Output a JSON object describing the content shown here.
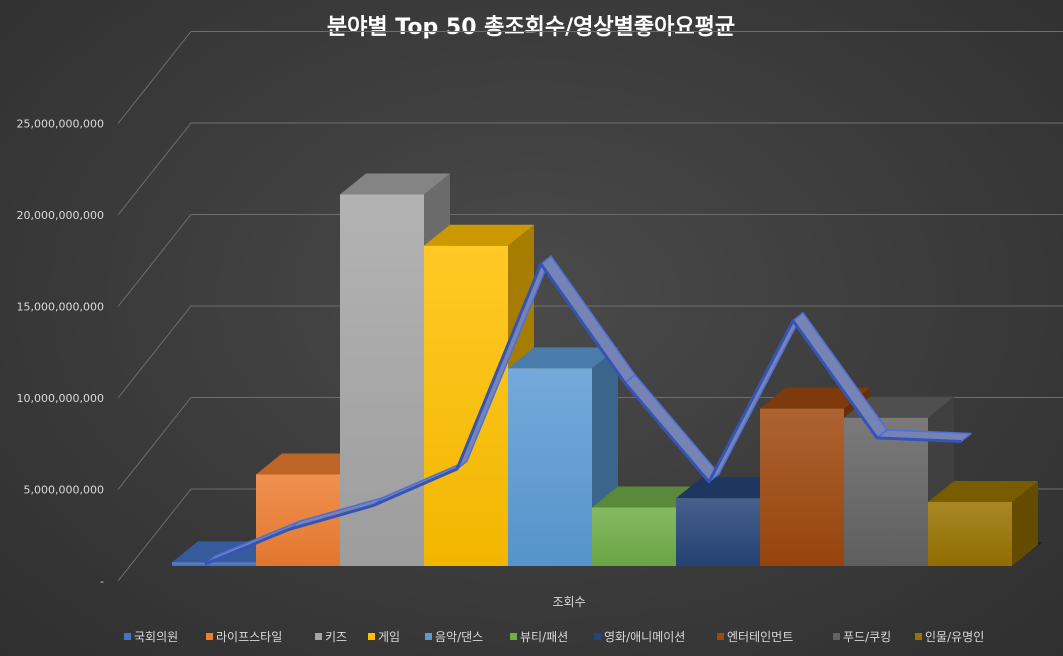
{
  "chart_data": {
    "type": "bar",
    "title": "분야별 Top 50 총조회수/영상별좋아요평균",
    "xlabel": "조회수",
    "ylabel": "",
    "ylim": [
      0,
      25000000000
    ],
    "ytick_labels": [
      "-",
      "5,000,000,000",
      "10,000,000,000",
      "15,000,000,000",
      "20,000,000,000",
      "25,000,000,000"
    ],
    "grid": true,
    "legend_position": "bottom",
    "series": [
      {
        "name": "국회의원",
        "value": 200000000,
        "color": "#4472C4"
      },
      {
        "name": "라이프스타일",
        "value": 5000000000,
        "color": "#ED7D31"
      },
      {
        "name": "키즈",
        "value": 20300000000,
        "color": "#A5A5A5"
      },
      {
        "name": "게임",
        "value": 17500000000,
        "color": "#FFC000"
      },
      {
        "name": "음악/댄스",
        "value": 10800000000,
        "color": "#5B9BD5"
      },
      {
        "name": "뷰티/패션",
        "value": 3200000000,
        "color": "#70AD47"
      },
      {
        "name": "영화/애니메이션",
        "value": 3700000000,
        "color": "#264478"
      },
      {
        "name": "엔터테인먼트",
        "value": 8600000000,
        "color": "#9E480E"
      },
      {
        "name": "푸드/쿠킹",
        "value": 8100000000,
        "color": "#636363"
      },
      {
        "name": "인물/유명인",
        "value": 3500000000,
        "color": "#997300"
      }
    ],
    "line_series": {
      "values": [
        0.1,
        2.0,
        3.3,
        5.3,
        16.5,
        10.0,
        4.6,
        13.4,
        7.0,
        6.8
      ],
      "color": "#8496C8"
    }
  }
}
